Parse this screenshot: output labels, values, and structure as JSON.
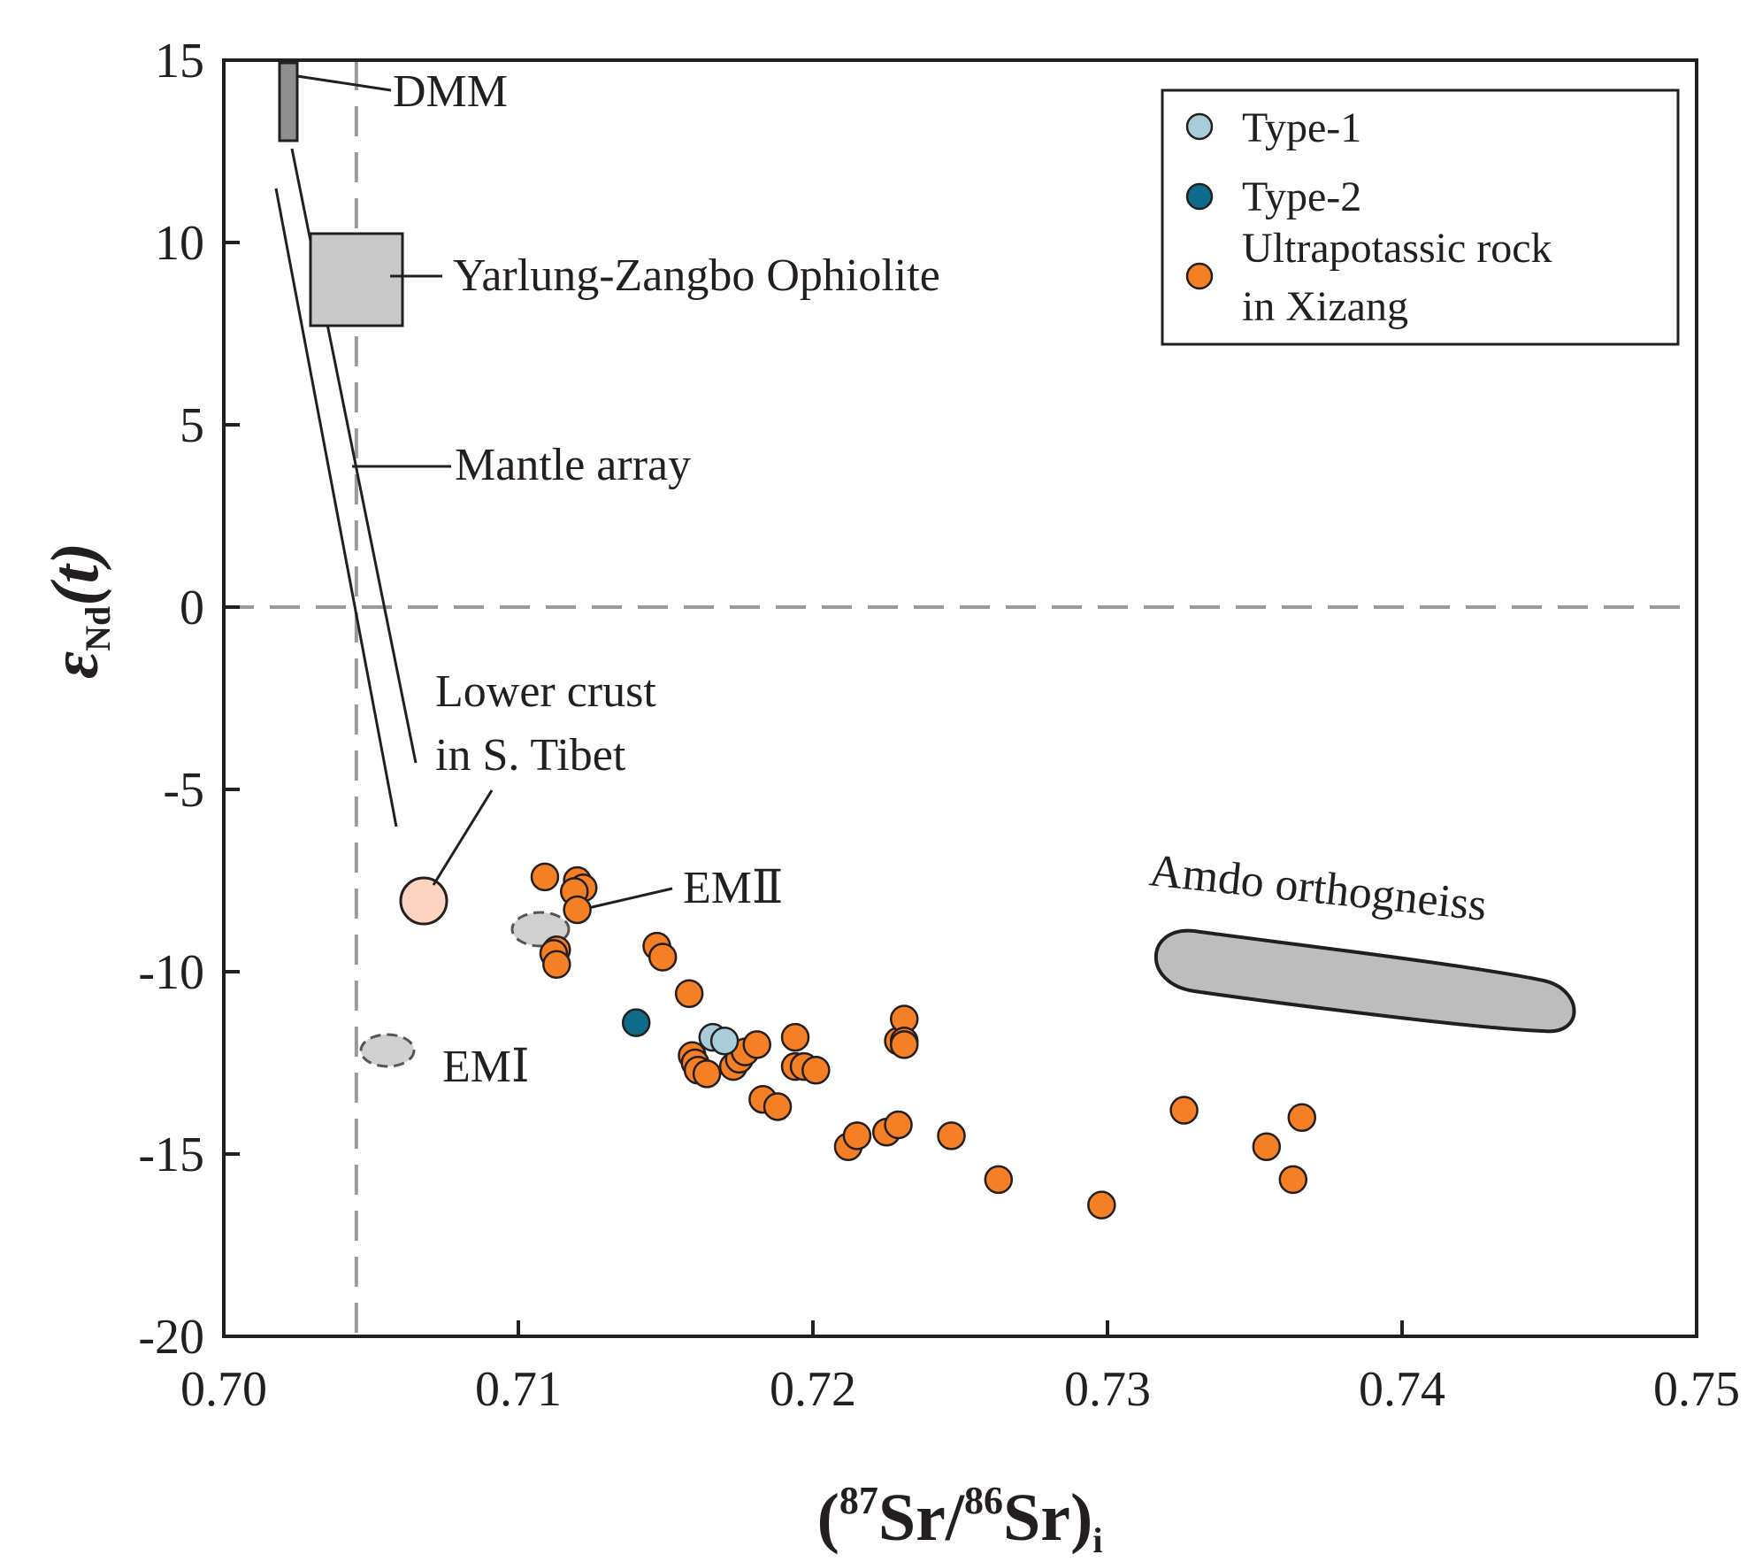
{
  "chart_data": {
    "type": "scatter",
    "xlabel": {
      "open": "(",
      "sup1": "87",
      "mid": "Sr/",
      "sup2": "86",
      "end": "Sr)",
      "sub": "i"
    },
    "ylabel": {
      "symbol": "ε",
      "sub": "Nd",
      "rest": "(t)"
    },
    "xlim": [
      0.7,
      0.75
    ],
    "ylim": [
      -20,
      15
    ],
    "xticks": [
      "0.70",
      "0.71",
      "0.72",
      "0.73",
      "0.74",
      "0.75"
    ],
    "yticks": [
      "15",
      "10",
      "5",
      "0",
      "-5",
      "-10",
      "-15",
      "-20"
    ],
    "reference_lines": {
      "x": 0.7045,
      "y": 0
    },
    "legend": [
      {
        "key": "type1",
        "lines": [
          "Type-1"
        ],
        "color": "#a8cdd9"
      },
      {
        "key": "type2",
        "lines": [
          "Type-2"
        ],
        "color": "#0e6b8a"
      },
      {
        "key": "uk",
        "lines": [
          "Ultrapotassic rock",
          "in Xizang"
        ],
        "color": "#f47f24"
      }
    ],
    "annotations": {
      "dmm": "DMM",
      "yzo": "Yarlung-Zangbo Ophiolite",
      "mantle": "Mantle array",
      "lowercrust": [
        "Lower crust",
        "in S. Tibet"
      ],
      "em2": "EMⅡ",
      "em1": "EMⅠ",
      "amdo": "Amdo orthogneiss"
    },
    "series": [
      {
        "name": "Type-1",
        "color": "#a8cdd9",
        "points": [
          [
            0.7166,
            -11.8
          ],
          [
            0.717,
            -11.9
          ]
        ]
      },
      {
        "name": "Type-2",
        "color": "#0e6b8a",
        "points": [
          [
            0.714,
            -11.4
          ]
        ]
      },
      {
        "name": "Ultrapotassic rock in Xizang",
        "color": "#f47f24",
        "points": [
          [
            0.7109,
            -7.4
          ],
          [
            0.712,
            -7.5
          ],
          [
            0.7122,
            -7.7
          ],
          [
            0.7119,
            -7.8
          ],
          [
            0.712,
            -8.3
          ],
          [
            0.7113,
            -9.4
          ],
          [
            0.7112,
            -9.5
          ],
          [
            0.7113,
            -9.8
          ],
          [
            0.7147,
            -9.3
          ],
          [
            0.7149,
            -9.6
          ],
          [
            0.7158,
            -10.6
          ],
          [
            0.7159,
            -12.3
          ],
          [
            0.716,
            -12.5
          ],
          [
            0.7161,
            -12.7
          ],
          [
            0.7164,
            -12.8
          ],
          [
            0.7173,
            -12.6
          ],
          [
            0.7175,
            -12.4
          ],
          [
            0.7177,
            -12.2
          ],
          [
            0.7181,
            -12.0
          ],
          [
            0.7183,
            -13.5
          ],
          [
            0.7188,
            -13.7
          ],
          [
            0.7194,
            -11.8
          ],
          [
            0.7194,
            -12.6
          ],
          [
            0.7197,
            -12.6
          ],
          [
            0.7201,
            -12.7
          ],
          [
            0.7212,
            -14.8
          ],
          [
            0.7215,
            -14.5
          ],
          [
            0.7225,
            -14.4
          ],
          [
            0.7229,
            -14.2
          ],
          [
            0.7229,
            -11.9
          ],
          [
            0.7231,
            -11.3
          ],
          [
            0.7231,
            -11.9
          ],
          [
            0.7231,
            -12.0
          ],
          [
            0.7247,
            -14.5
          ],
          [
            0.7263,
            -15.7
          ],
          [
            0.7298,
            -16.4
          ],
          [
            0.7326,
            -13.8
          ],
          [
            0.7354,
            -14.8
          ],
          [
            0.7363,
            -15.7
          ],
          [
            0.7366,
            -14.0
          ]
        ]
      }
    ]
  }
}
